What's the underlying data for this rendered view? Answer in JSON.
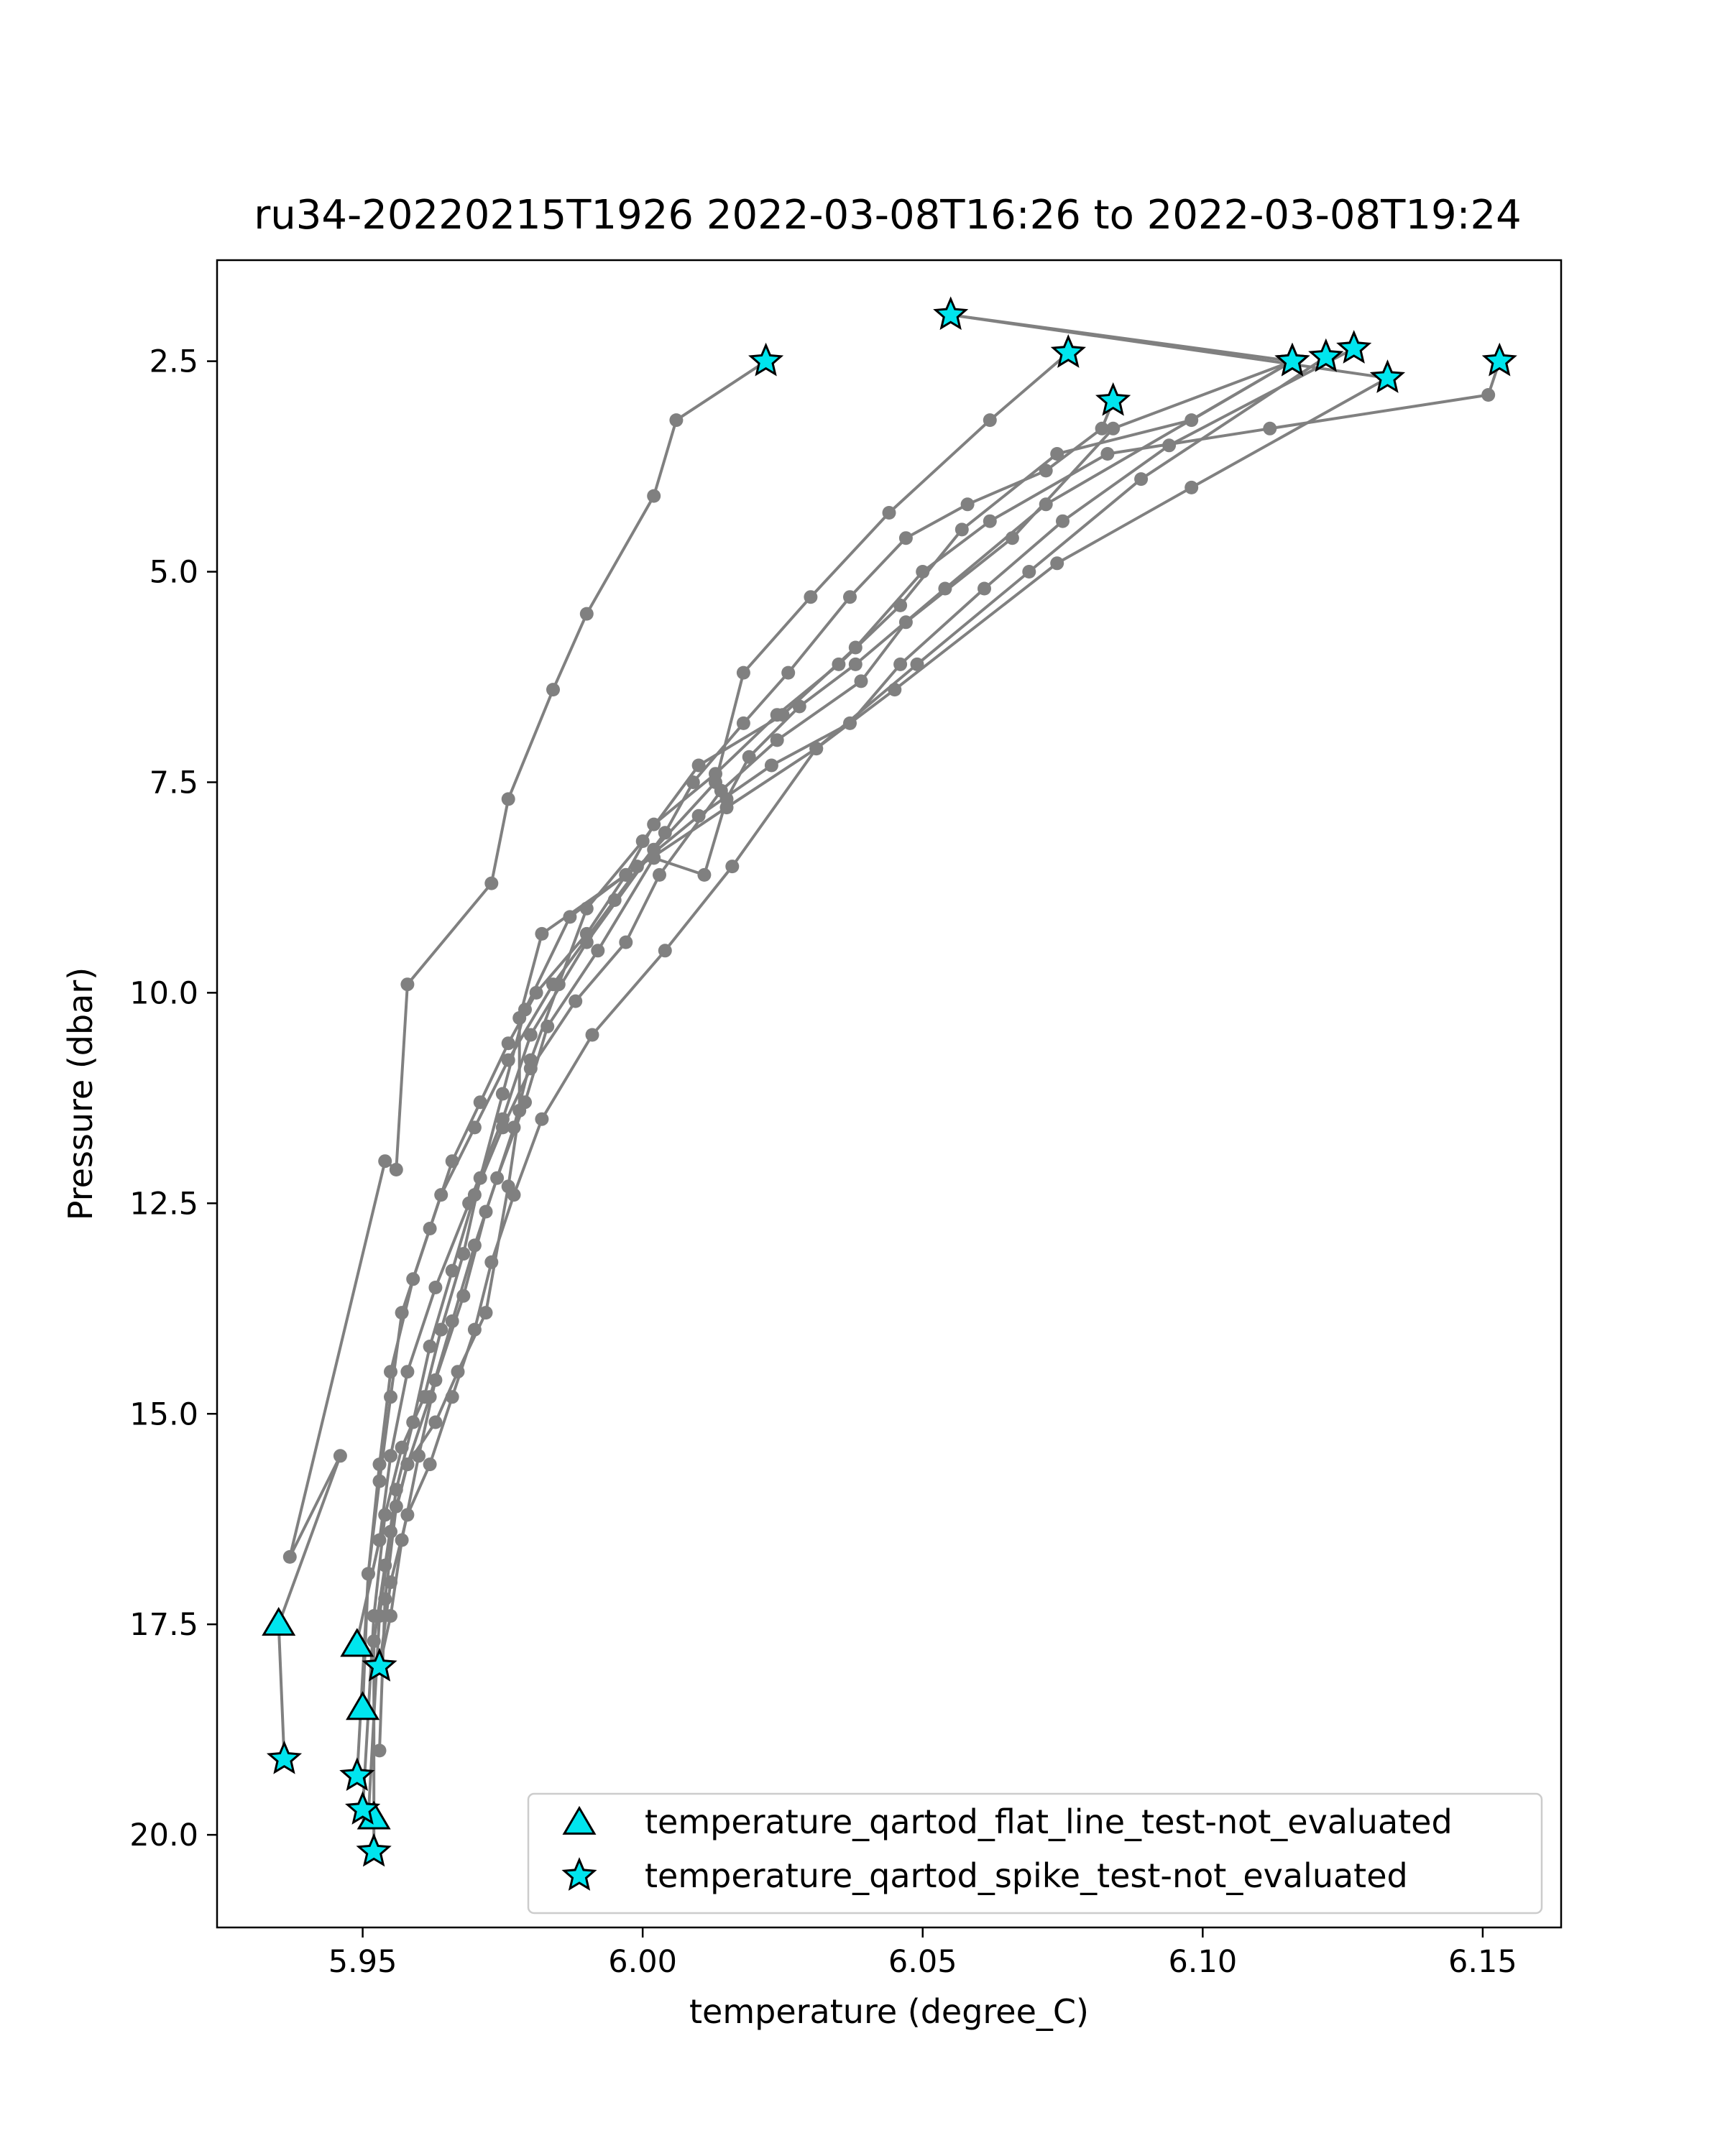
{
  "chart_data": {
    "type": "scatter",
    "title": "ru34-20220215T1926 2022-03-08T16:26 to 2022-03-08T19:24",
    "xlabel": "temperature (degree_C)",
    "ylabel": "Pressure (dbar)",
    "xlim": [
      5.924,
      6.164
    ],
    "ylim": [
      21.1,
      1.3
    ],
    "y_inverted": true,
    "x_ticks": [
      "5.95",
      "6.00",
      "6.05",
      "6.10",
      "6.15"
    ],
    "x_tick_values": [
      5.95,
      6.0,
      6.05,
      6.1,
      6.15
    ],
    "y_ticks": [
      "2.5",
      "5.0",
      "7.5",
      "10.0",
      "12.5",
      "15.0",
      "17.5",
      "20.0"
    ],
    "y_tick_values": [
      2.5,
      5.0,
      7.5,
      10.0,
      12.5,
      15.0,
      17.5,
      20.0
    ],
    "grid": false,
    "legend_position": "lower-right",
    "colors": {
      "profile_line": "#808080",
      "marker_fill": "#00e5ee",
      "marker_edge": "#000000"
    },
    "profiles": [
      {
        "name": "",
        "points": [
          [
            6.022,
            2.5
          ],
          [
            6.006,
            3.2
          ],
          [
            6.002,
            4.1
          ],
          [
            5.99,
            5.5
          ],
          [
            5.984,
            6.4
          ],
          [
            5.976,
            7.7
          ],
          [
            5.973,
            8.7
          ],
          [
            5.958,
            9.9
          ],
          [
            5.956,
            12.1
          ],
          [
            5.954,
            12.0
          ],
          [
            5.937,
            16.7
          ],
          [
            5.946,
            15.5
          ],
          [
            5.935,
            17.5
          ],
          [
            5.936,
            19.1
          ]
        ]
      },
      {
        "name": "",
        "points": [
          [
            6.076,
            2.4
          ],
          [
            6.062,
            3.2
          ],
          [
            6.044,
            4.3
          ],
          [
            6.03,
            5.3
          ],
          [
            6.018,
            6.2
          ],
          [
            6.013,
            7.5
          ],
          [
            6.002,
            8.3
          ],
          [
            5.99,
            9.4
          ],
          [
            5.98,
            10.5
          ],
          [
            5.975,
            11.5
          ],
          [
            5.969,
            12.5
          ],
          [
            5.963,
            13.5
          ],
          [
            5.958,
            14.5
          ],
          [
            5.955,
            15.5
          ],
          [
            5.953,
            16.5
          ],
          [
            5.949,
            17.7
          ]
        ]
      },
      {
        "name": "",
        "points": [
          [
            6.084,
            2.97
          ],
          [
            6.082,
            3.3
          ],
          [
            6.072,
            3.8
          ],
          [
            6.058,
            4.2
          ],
          [
            6.047,
            4.6
          ],
          [
            6.037,
            5.3
          ],
          [
            6.026,
            6.2
          ],
          [
            6.018,
            6.8
          ],
          [
            6.009,
            7.5
          ],
          [
            6.004,
            8.1
          ],
          [
            5.995,
            8.9
          ],
          [
            5.984,
            9.9
          ],
          [
            5.976,
            10.8
          ],
          [
            5.97,
            11.6
          ],
          [
            5.964,
            12.4
          ],
          [
            5.959,
            13.4
          ],
          [
            5.955,
            14.5
          ],
          [
            5.953,
            15.6
          ],
          [
            5.951,
            16.9
          ],
          [
            5.95,
            18.5
          ]
        ]
      },
      {
        "name": "",
        "points": [
          [
            6.055,
            1.95
          ],
          [
            6.116,
            2.5
          ],
          [
            6.098,
            3.2
          ],
          [
            6.074,
            3.6
          ],
          [
            6.057,
            4.5
          ],
          [
            6.046,
            5.4
          ],
          [
            6.035,
            6.1
          ],
          [
            6.024,
            6.7
          ],
          [
            6.013,
            7.4
          ],
          [
            6.002,
            8.0
          ],
          [
            5.997,
            8.6
          ],
          [
            5.99,
            9.3
          ],
          [
            5.981,
            10.0
          ],
          [
            5.976,
            10.6
          ],
          [
            5.971,
            11.3
          ],
          [
            5.966,
            12.0
          ],
          [
            5.962,
            12.8
          ],
          [
            5.957,
            13.8
          ],
          [
            5.955,
            14.8
          ],
          [
            5.953,
            15.8
          ],
          [
            5.951,
            16.9
          ],
          [
            5.949,
            19.3
          ]
        ]
      },
      {
        "name": "",
        "points": [
          [
            6.116,
            2.5
          ],
          [
            6.072,
            4.2
          ],
          [
            6.054,
            5.2
          ],
          [
            6.038,
            6.1
          ],
          [
            6.028,
            6.6
          ],
          [
            6.019,
            7.2
          ],
          [
            6.015,
            7.7
          ],
          [
            6.011,
            8.6
          ],
          [
            6.002,
            8.4
          ],
          [
            5.992,
            9.5
          ],
          [
            5.983,
            10.4
          ],
          [
            5.979,
            11.3
          ],
          [
            5.974,
            12.2
          ],
          [
            5.97,
            13.0
          ],
          [
            5.966,
            13.9
          ],
          [
            5.962,
            14.8
          ],
          [
            5.958,
            15.6
          ],
          [
            5.955,
            16.4
          ],
          [
            5.953,
            17.4
          ],
          [
            5.951,
            19.8
          ]
        ]
      },
      {
        "name": "",
        "points": [
          [
            6.116,
            2.5
          ],
          [
            6.084,
            3.3
          ],
          [
            6.066,
            4.6
          ],
          [
            6.047,
            5.6
          ],
          [
            6.039,
            6.3
          ],
          [
            6.024,
            7.0
          ],
          [
            6.014,
            7.6
          ],
          [
            6.003,
            8.6
          ],
          [
            5.997,
            9.4
          ],
          [
            5.988,
            10.1
          ],
          [
            5.98,
            10.9
          ],
          [
            5.975,
            11.6
          ],
          [
            5.97,
            12.4
          ],
          [
            5.966,
            13.3
          ],
          [
            5.962,
            14.2
          ],
          [
            5.959,
            15.1
          ],
          [
            5.956,
            15.9
          ],
          [
            5.954,
            16.8
          ],
          [
            5.952,
            17.7
          ],
          [
            5.952,
            20.2
          ]
        ]
      },
      {
        "name": "",
        "points": [
          [
            6.122,
            2.45
          ],
          [
            6.089,
            3.9
          ],
          [
            6.069,
            5.0
          ],
          [
            6.049,
            6.1
          ],
          [
            6.031,
            7.1
          ],
          [
            6.016,
            8.5
          ],
          [
            6.004,
            9.5
          ],
          [
            5.991,
            10.5
          ],
          [
            5.982,
            11.5
          ],
          [
            5.977,
            12.4
          ],
          [
            5.973,
            13.2
          ],
          [
            5.97,
            14.0
          ],
          [
            5.966,
            14.8
          ],
          [
            5.962,
            15.6
          ],
          [
            5.958,
            16.2
          ],
          [
            5.955,
            17.0
          ],
          [
            5.953,
            18.0
          ]
        ]
      },
      {
        "name": "",
        "points": [
          [
            6.133,
            2.7
          ],
          [
            6.098,
            4.0
          ],
          [
            6.074,
            4.9
          ],
          [
            6.045,
            6.4
          ],
          [
            6.031,
            7.1
          ],
          [
            6.015,
            7.8
          ],
          [
            5.997,
            8.6
          ],
          [
            5.982,
            9.3
          ],
          [
            5.978,
            10.3
          ],
          [
            5.978,
            11.4
          ],
          [
            5.976,
            12.3
          ],
          [
            5.972,
            13.8
          ],
          [
            5.967,
            14.5
          ],
          [
            5.963,
            15.1
          ],
          [
            5.958,
            15.6
          ],
          [
            5.956,
            16.1
          ],
          [
            5.954,
            17.2
          ],
          [
            5.953,
            19.0
          ]
        ]
      },
      {
        "name": "",
        "points": [
          [
            6.127,
            2.35
          ],
          [
            6.094,
            3.5
          ],
          [
            6.075,
            4.4
          ],
          [
            6.061,
            5.2
          ],
          [
            6.046,
            6.1
          ],
          [
            6.037,
            6.8
          ],
          [
            6.023,
            7.3
          ],
          [
            6.01,
            7.9
          ],
          [
            5.999,
            8.5
          ],
          [
            5.987,
            9.1
          ],
          [
            5.979,
            10.2
          ],
          [
            5.975,
            11.2
          ],
          [
            5.971,
            12.2
          ],
          [
            5.968,
            13.1
          ],
          [
            5.964,
            14.0
          ],
          [
            5.961,
            14.8
          ],
          [
            5.957,
            15.4
          ],
          [
            5.954,
            16.2
          ],
          [
            5.952,
            17.4
          ],
          [
            5.95,
            19.7
          ]
        ]
      },
      {
        "name": "",
        "points": [
          [
            6.153,
            2.5
          ],
          [
            6.151,
            2.9
          ],
          [
            6.112,
            3.3
          ],
          [
            6.083,
            3.6
          ],
          [
            6.062,
            4.4
          ],
          [
            6.05,
            5.0
          ],
          [
            6.038,
            5.9
          ],
          [
            6.025,
            6.7
          ],
          [
            6.01,
            7.3
          ],
          [
            6.0,
            8.2
          ],
          [
            5.99,
            9.0
          ],
          [
            5.985,
            9.9
          ],
          [
            5.98,
            10.8
          ],
          [
            5.977,
            11.6
          ],
          [
            5.972,
            12.6
          ],
          [
            5.968,
            13.6
          ],
          [
            5.963,
            14.6
          ],
          [
            5.96,
            15.5
          ],
          [
            5.957,
            16.5
          ],
          [
            5.955,
            17.4
          ],
          [
            5.953,
            18.0
          ]
        ]
      },
      {
        "name": "",
        "points": [
          [
            6.055,
            1.95
          ],
          [
            6.133,
            2.7
          ]
        ]
      }
    ],
    "flat_line_flags": [
      [
        5.935,
        17.5
      ],
      [
        5.949,
        17.75
      ],
      [
        5.95,
        18.5
      ],
      [
        5.952,
        19.8
      ]
    ],
    "spike_flags": [
      [
        6.022,
        2.5
      ],
      [
        6.055,
        1.95
      ],
      [
        6.076,
        2.4
      ],
      [
        6.084,
        2.97
      ],
      [
        6.116,
        2.5
      ],
      [
        6.116,
        2.5
      ],
      [
        6.122,
        2.45
      ],
      [
        6.127,
        2.35
      ],
      [
        6.133,
        2.7
      ],
      [
        6.153,
        2.5
      ],
      [
        5.936,
        19.1
      ],
      [
        5.953,
        18.0
      ],
      [
        5.949,
        19.3
      ],
      [
        5.95,
        19.7
      ],
      [
        5.952,
        20.2
      ]
    ],
    "legend": [
      {
        "marker": "triangle",
        "label": "temperature_qartod_flat_line_test-not_evaluated"
      },
      {
        "marker": "star",
        "label": "temperature_qartod_spike_test-not_evaluated"
      }
    ]
  }
}
